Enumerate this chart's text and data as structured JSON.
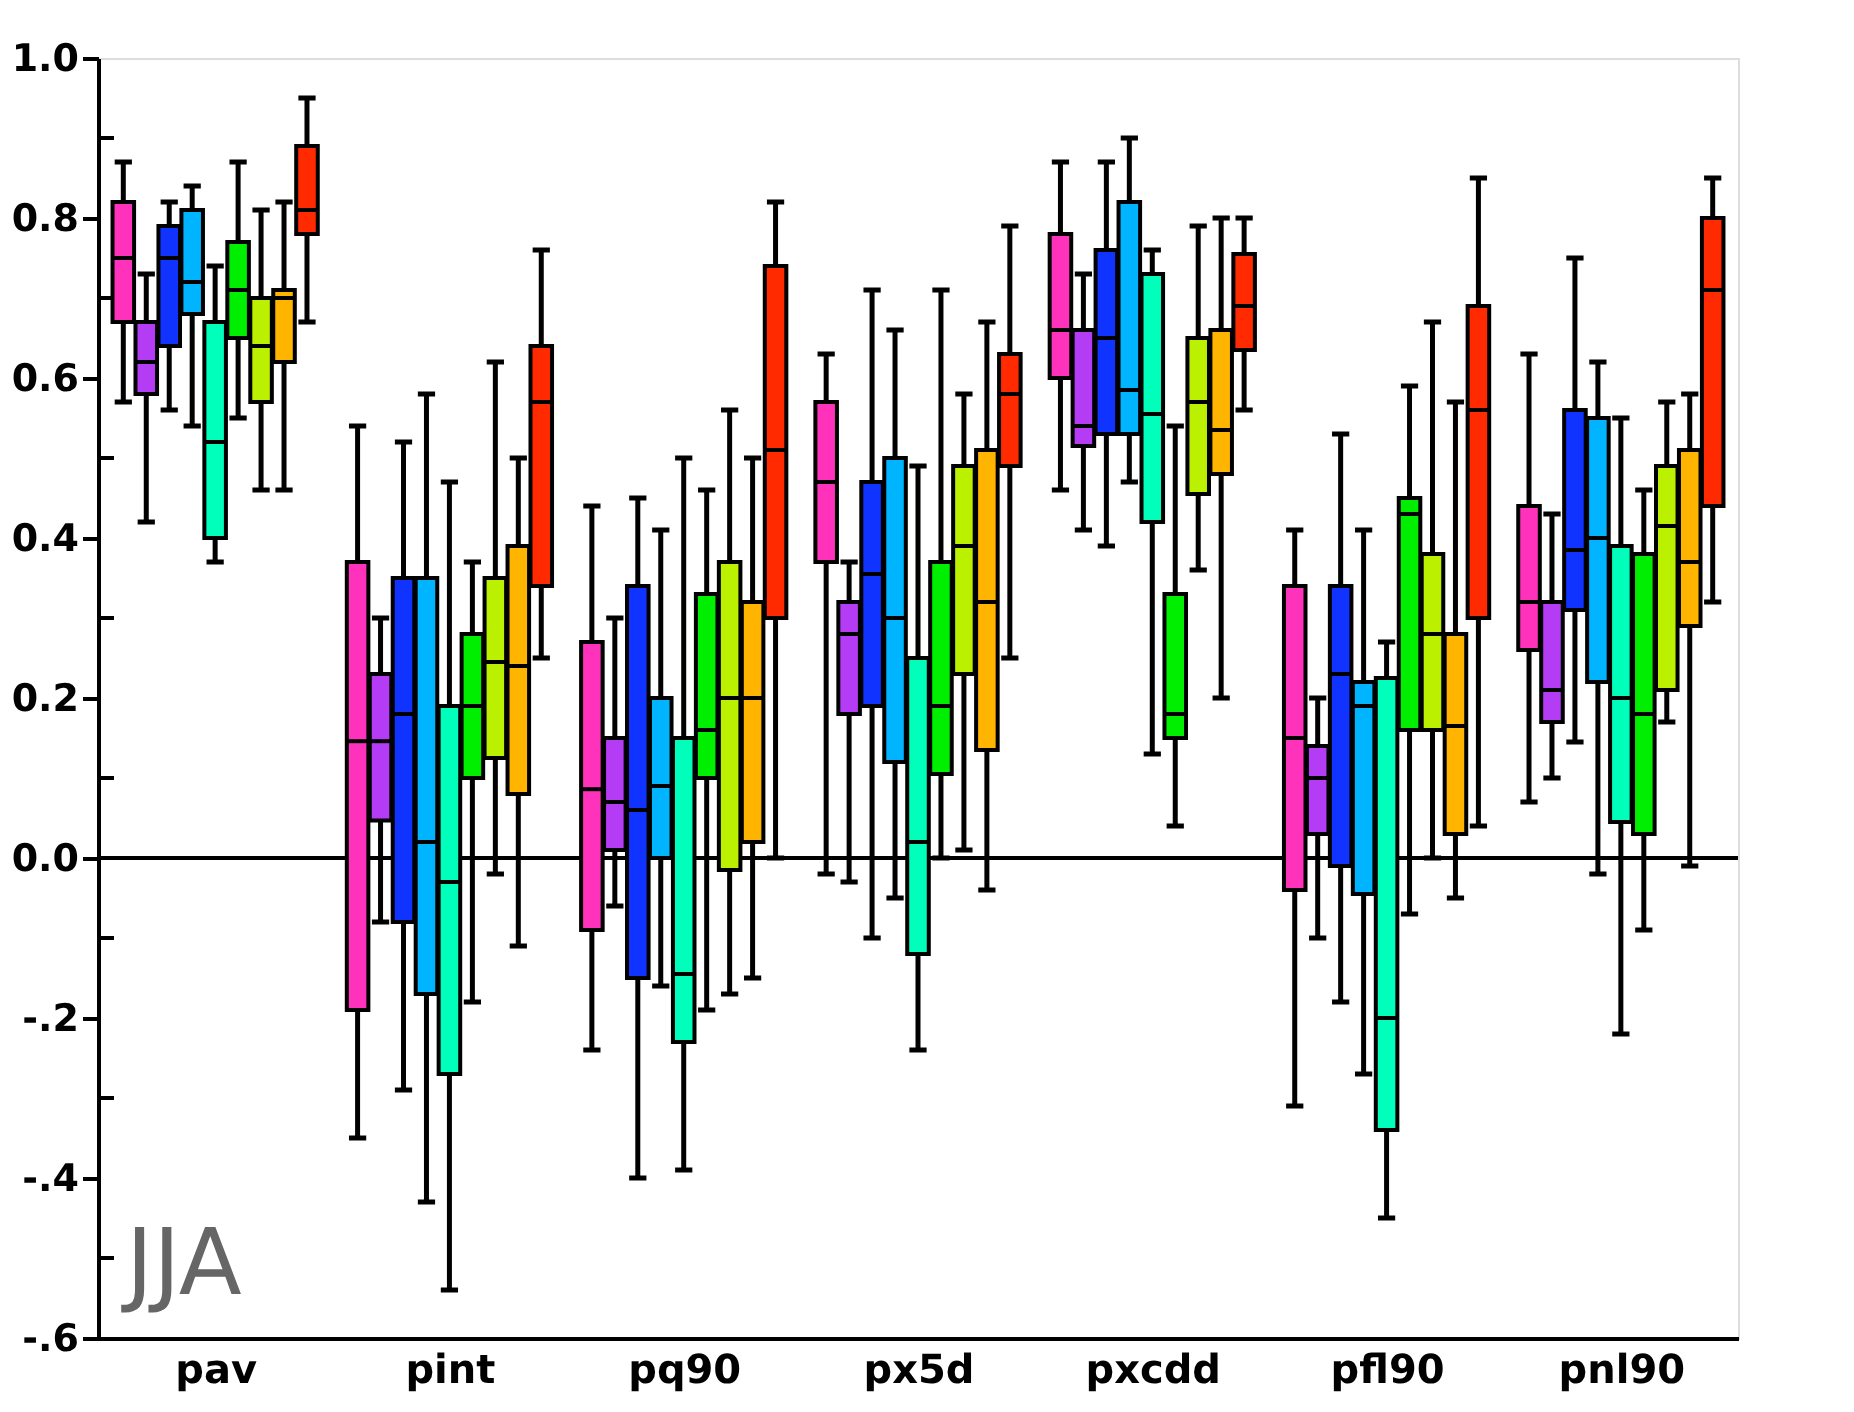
{
  "chart_data": {
    "type": "box",
    "categories": [
      "pav",
      "pint",
      "pq90",
      "px5d",
      "pxcdd",
      "pfl90",
      "pnl90"
    ],
    "ylim": [
      -0.6,
      1.0
    ],
    "yticks": [
      {
        "value": 1.0,
        "label": "1.0"
      },
      {
        "value": 0.9,
        "label": null
      },
      {
        "value": 0.8,
        "label": "0.8"
      },
      {
        "value": 0.7,
        "label": null
      },
      {
        "value": 0.6,
        "label": "0.6"
      },
      {
        "value": 0.5,
        "label": null
      },
      {
        "value": 0.4,
        "label": "0.4"
      },
      {
        "value": 0.3,
        "label": null
      },
      {
        "value": 0.2,
        "label": "0.2"
      },
      {
        "value": 0.1,
        "label": null
      },
      {
        "value": 0.0,
        "label": "0.0"
      },
      {
        "value": -0.1,
        "label": null
      },
      {
        "value": -0.2,
        "label": "-.2"
      },
      {
        "value": -0.3,
        "label": null
      },
      {
        "value": -0.4,
        "label": "-.4"
      },
      {
        "value": -0.5,
        "label": null
      },
      {
        "value": -0.6,
        "label": "-.6"
      }
    ],
    "grid": false,
    "ref_lines": [
      {
        "axis": "y",
        "value": 0,
        "color": "#000000"
      }
    ],
    "annotations": [
      "JJA"
    ],
    "series": [
      {
        "color": "#ff33bb",
        "boxes": [
          {
            "low": 0.57,
            "q1": 0.67,
            "median": 0.75,
            "q3": 0.82,
            "high": 0.87
          },
          {
            "low": -0.35,
            "q1": -0.19,
            "median": 0.146,
            "q3": 0.37,
            "high": 0.54
          },
          {
            "low": -0.24,
            "q1": -0.09,
            "median": 0.086,
            "q3": 0.27,
            "high": 0.44
          },
          {
            "low": -0.02,
            "q1": 0.37,
            "median": 0.47,
            "q3": 0.57,
            "high": 0.63
          },
          {
            "low": 0.46,
            "q1": 0.6,
            "median": 0.66,
            "q3": 0.78,
            "high": 0.87
          },
          {
            "low": -0.31,
            "q1": -0.04,
            "median": 0.15,
            "q3": 0.34,
            "high": 0.41
          },
          {
            "low": 0.07,
            "q1": 0.26,
            "median": 0.32,
            "q3": 0.44,
            "high": 0.63
          }
        ]
      },
      {
        "color": "#b43cf5",
        "boxes": [
          {
            "low": 0.42,
            "q1": 0.58,
            "median": 0.62,
            "q3": 0.67,
            "high": 0.73
          },
          {
            "low": -0.08,
            "q1": 0.047,
            "median": 0.146,
            "q3": 0.23,
            "high": 0.3
          },
          {
            "low": -0.06,
            "q1": 0.01,
            "median": 0.07,
            "q3": 0.15,
            "high": 0.3
          },
          {
            "low": -0.03,
            "q1": 0.18,
            "median": 0.28,
            "q3": 0.32,
            "high": 0.37
          },
          {
            "low": 0.41,
            "q1": 0.515,
            "median": 0.54,
            "q3": 0.66,
            "high": 0.73
          },
          {
            "low": -0.1,
            "q1": 0.03,
            "median": 0.1,
            "q3": 0.14,
            "high": 0.2
          },
          {
            "low": 0.1,
            "q1": 0.17,
            "median": 0.21,
            "q3": 0.32,
            "high": 0.43
          }
        ]
      },
      {
        "color": "#1133ff",
        "boxes": [
          {
            "low": 0.56,
            "q1": 0.64,
            "median": 0.75,
            "q3": 0.79,
            "high": 0.82
          },
          {
            "low": -0.29,
            "q1": -0.08,
            "median": 0.18,
            "q3": 0.35,
            "high": 0.52
          },
          {
            "low": -0.4,
            "q1": -0.15,
            "median": 0.06,
            "q3": 0.34,
            "high": 0.45
          },
          {
            "low": -0.1,
            "q1": 0.19,
            "median": 0.355,
            "q3": 0.47,
            "high": 0.71
          },
          {
            "low": 0.39,
            "q1": 0.53,
            "median": 0.65,
            "q3": 0.76,
            "high": 0.87
          },
          {
            "low": -0.18,
            "q1": -0.01,
            "median": 0.23,
            "q3": 0.34,
            "high": 0.53
          },
          {
            "low": 0.145,
            "q1": 0.31,
            "median": 0.385,
            "q3": 0.56,
            "high": 0.75
          }
        ]
      },
      {
        "color": "#00b4ff",
        "boxes": [
          {
            "low": 0.54,
            "q1": 0.68,
            "median": 0.72,
            "q3": 0.81,
            "high": 0.84
          },
          {
            "low": -0.43,
            "q1": -0.17,
            "median": 0.02,
            "q3": 0.35,
            "high": 0.58
          },
          {
            "low": -0.16,
            "q1": 0.0,
            "median": 0.09,
            "q3": 0.2,
            "high": 0.41
          },
          {
            "low": -0.05,
            "q1": 0.12,
            "median": 0.3,
            "q3": 0.5,
            "high": 0.66
          },
          {
            "low": 0.47,
            "q1": 0.53,
            "median": 0.585,
            "q3": 0.82,
            "high": 0.9
          },
          {
            "low": -0.27,
            "q1": -0.045,
            "median": 0.19,
            "q3": 0.22,
            "high": 0.41
          },
          {
            "low": -0.02,
            "q1": 0.22,
            "median": 0.4,
            "q3": 0.55,
            "high": 0.62
          }
        ]
      },
      {
        "color": "#00ffbb",
        "boxes": [
          {
            "low": 0.37,
            "q1": 0.4,
            "median": 0.52,
            "q3": 0.67,
            "high": 0.74
          },
          {
            "low": -0.54,
            "q1": -0.27,
            "median": -0.03,
            "q3": 0.19,
            "high": 0.47
          },
          {
            "low": -0.39,
            "q1": -0.23,
            "median": -0.145,
            "q3": 0.15,
            "high": 0.5
          },
          {
            "low": -0.24,
            "q1": -0.12,
            "median": 0.02,
            "q3": 0.25,
            "high": 0.49
          },
          {
            "low": 0.13,
            "q1": 0.42,
            "median": 0.555,
            "q3": 0.73,
            "high": 0.76
          },
          {
            "low": -0.45,
            "q1": -0.34,
            "median": -0.2,
            "q3": 0.225,
            "high": 0.27
          },
          {
            "low": -0.22,
            "q1": 0.045,
            "median": 0.2,
            "q3": 0.39,
            "high": 0.55
          }
        ]
      },
      {
        "color": "#00ee00",
        "boxes": [
          {
            "low": 0.55,
            "q1": 0.65,
            "median": 0.71,
            "q3": 0.77,
            "high": 0.87
          },
          {
            "low": -0.18,
            "q1": 0.1,
            "median": 0.19,
            "q3": 0.28,
            "high": 0.37
          },
          {
            "low": -0.19,
            "q1": 0.1,
            "median": 0.16,
            "q3": 0.33,
            "high": 0.46
          },
          {
            "low": 0.0,
            "q1": 0.105,
            "median": 0.19,
            "q3": 0.37,
            "high": 0.71
          },
          {
            "low": 0.04,
            "q1": 0.15,
            "median": 0.18,
            "q3": 0.33,
            "high": 0.54
          },
          {
            "low": -0.07,
            "q1": 0.16,
            "median": 0.43,
            "q3": 0.45,
            "high": 0.59
          },
          {
            "low": -0.09,
            "q1": 0.03,
            "median": 0.18,
            "q3": 0.38,
            "high": 0.46
          }
        ]
      },
      {
        "color": "#bbf000",
        "boxes": [
          {
            "low": 0.46,
            "q1": 0.57,
            "median": 0.64,
            "q3": 0.7,
            "high": 0.81
          },
          {
            "low": -0.02,
            "q1": 0.125,
            "median": 0.245,
            "q3": 0.35,
            "high": 0.62
          },
          {
            "low": -0.17,
            "q1": -0.015,
            "median": 0.2,
            "q3": 0.37,
            "high": 0.56
          },
          {
            "low": 0.01,
            "q1": 0.23,
            "median": 0.39,
            "q3": 0.49,
            "high": 0.58
          },
          {
            "low": 0.36,
            "q1": 0.455,
            "median": 0.57,
            "q3": 0.65,
            "high": 0.79
          },
          {
            "low": 0.0,
            "q1": 0.16,
            "median": 0.28,
            "q3": 0.38,
            "high": 0.67
          },
          {
            "low": 0.17,
            "q1": 0.21,
            "median": 0.415,
            "q3": 0.49,
            "high": 0.57
          }
        ]
      },
      {
        "color": "#ffb400",
        "boxes": [
          {
            "low": 0.46,
            "q1": 0.62,
            "median": 0.7,
            "q3": 0.71,
            "high": 0.82
          },
          {
            "low": -0.11,
            "q1": 0.08,
            "median": 0.24,
            "q3": 0.39,
            "high": 0.5
          },
          {
            "low": -0.15,
            "q1": 0.02,
            "median": 0.2,
            "q3": 0.32,
            "high": 0.5
          },
          {
            "low": -0.04,
            "q1": 0.135,
            "median": 0.32,
            "q3": 0.51,
            "high": 0.67
          },
          {
            "low": 0.2,
            "q1": 0.48,
            "median": 0.535,
            "q3": 0.66,
            "high": 0.8
          },
          {
            "low": -0.05,
            "q1": 0.03,
            "median": 0.165,
            "q3": 0.28,
            "high": 0.57
          },
          {
            "low": -0.01,
            "q1": 0.29,
            "median": 0.37,
            "q3": 0.51,
            "high": 0.58
          }
        ]
      },
      {
        "color": "#ff2a00",
        "boxes": [
          {
            "low": 0.67,
            "q1": 0.78,
            "median": 0.81,
            "q3": 0.89,
            "high": 0.95
          },
          {
            "low": 0.25,
            "q1": 0.34,
            "median": 0.57,
            "q3": 0.64,
            "high": 0.76
          },
          {
            "low": 0.0,
            "q1": 0.3,
            "median": 0.51,
            "q3": 0.74,
            "high": 0.82
          },
          {
            "low": 0.25,
            "q1": 0.49,
            "median": 0.58,
            "q3": 0.63,
            "high": 0.79
          },
          {
            "low": 0.56,
            "q1": 0.635,
            "median": 0.69,
            "q3": 0.755,
            "high": 0.8
          },
          {
            "low": 0.04,
            "q1": 0.3,
            "median": 0.56,
            "q3": 0.69,
            "high": 0.85
          },
          {
            "low": 0.32,
            "q1": 0.44,
            "median": 0.71,
            "q3": 0.8,
            "high": 0.85
          }
        ]
      }
    ]
  }
}
